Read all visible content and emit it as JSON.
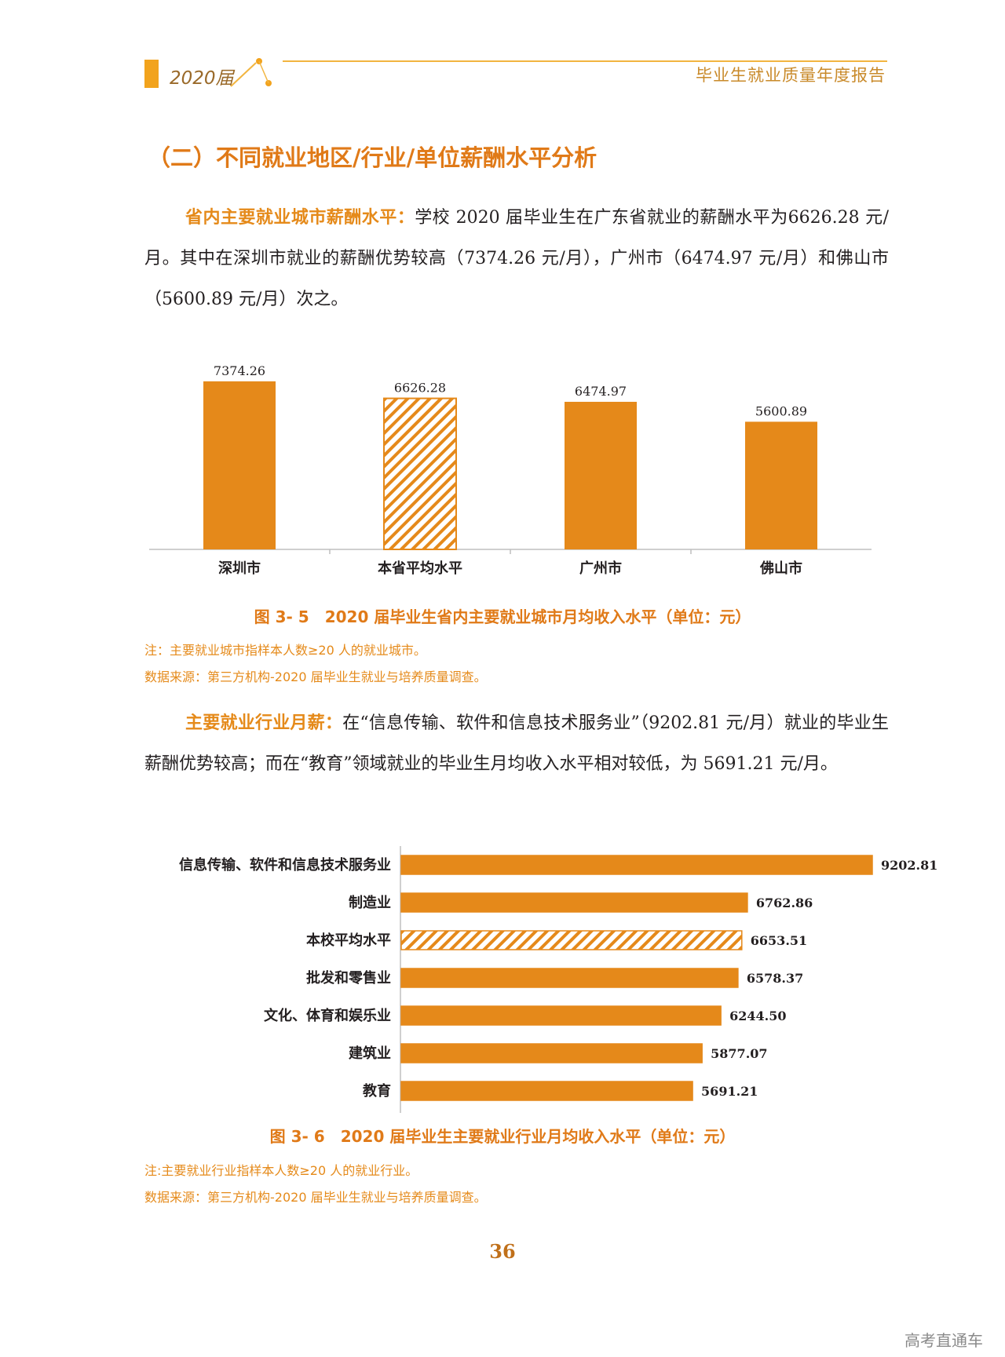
{
  "header": {
    "year_label": "2020届",
    "report_title": "毕业生就业质量年度报告",
    "accent_color": "#f2a31d"
  },
  "section_title": "（二）不同就业地区/行业/单位薪酬水平分析",
  "paragraph1": {
    "lead": "省内主要就业城市薪酬水平：",
    "text": "学校 2020 届毕业生在广东省就业的薪酬水平为6626.28 元/月。其中在深圳市就业的薪酬优势较高（7374.26 元/月），广州市（6474.97 元/月）和佛山市（5600.89 元/月）次之。"
  },
  "chart1": {
    "caption": "图 3- 5　2020 届毕业生省内主要就业城市月均收入水平（单位：元）",
    "note": "注：主要就业城市指样本人数≥20 人的就业城市。",
    "source": "数据来源：第三方机构-2020 届毕业生就业与培养质量调查。"
  },
  "paragraph2": {
    "lead": "主要就业行业月薪：",
    "text": "在“信息传输、软件和信息技术服务业”（9202.81 元/月）就业的毕业生薪酬优势较高；而在“教育”领域就业的毕业生月均收入水平相对较低，为 5691.21 元/月。"
  },
  "chart2": {
    "caption": "图 3- 6　2020 届毕业生主要就业行业月均收入水平（单位：元）",
    "note": "注:主要就业行业指样本人数≥20 人的就业行业。",
    "source": "数据来源：第三方机构-2020 届毕业生就业与培养质量调查。"
  },
  "page_number": "36",
  "watermark": "高考直通车",
  "chart_data": [
    {
      "type": "bar",
      "orientation": "vertical",
      "categories": [
        "深圳市",
        "本省平均水平",
        "广州市",
        "佛山市"
      ],
      "value_labels": [
        "7374.26",
        "6626.28",
        "6474.97",
        "5600.89"
      ],
      "values": [
        7374.26,
        6626.28,
        6474.97,
        5600.89
      ],
      "hatched": [
        false,
        true,
        false,
        false
      ],
      "bar_color": "#e5891a",
      "ylim": [
        0,
        8000
      ],
      "grid": false
    },
    {
      "type": "bar",
      "orientation": "horizontal",
      "categories": [
        "信息传输、软件和信息技术服务业",
        "制造业",
        "本校平均水平",
        "批发和零售业",
        "文化、体育和娱乐业",
        "建筑业",
        "教育"
      ],
      "value_labels": [
        "9202.81",
        "6762.86",
        "6653.51",
        "6578.37",
        "6244.50",
        "5877.07",
        "5691.21"
      ],
      "values": [
        9202.81,
        6762.86,
        6653.51,
        6578.37,
        6244.5,
        5877.07,
        5691.21
      ],
      "hatched": [
        false,
        false,
        true,
        false,
        false,
        false,
        false
      ],
      "bar_color": "#e5891a",
      "xlim": [
        0,
        9202.81
      ],
      "grid": false
    }
  ]
}
